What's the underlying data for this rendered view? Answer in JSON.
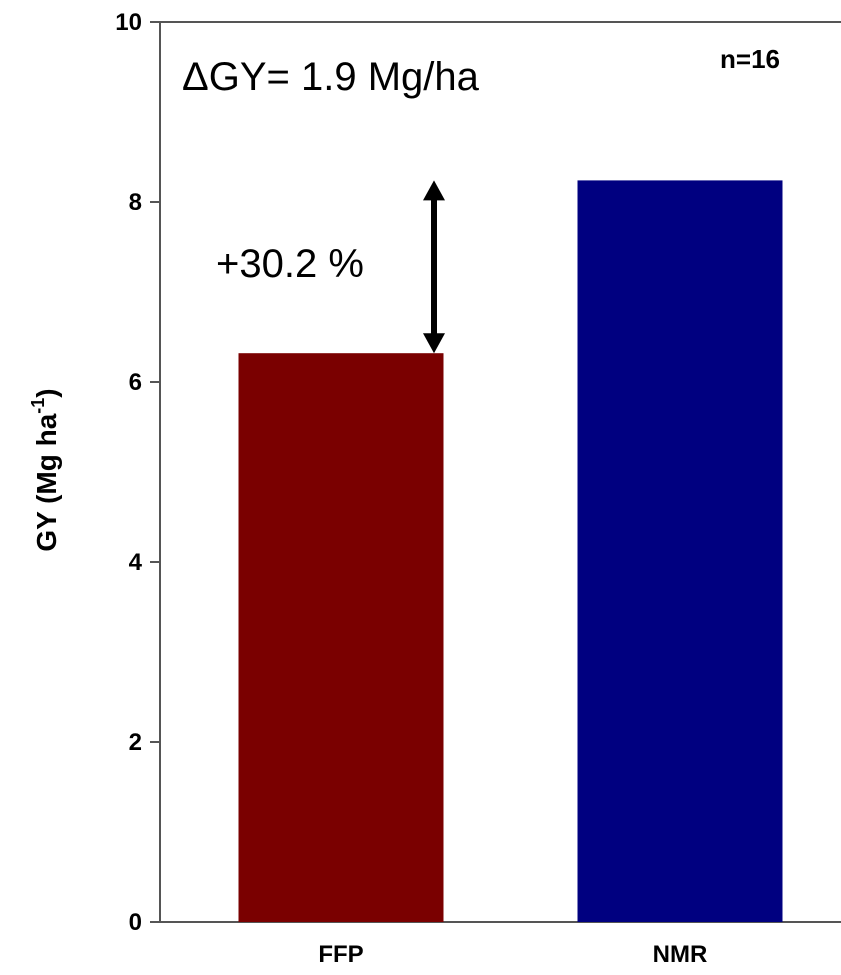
{
  "chart_data": {
    "type": "bar",
    "categories": [
      "FFP",
      "NMR"
    ],
    "values": [
      6.32,
      8.24
    ],
    "bar_colors": [
      "#7a0000",
      "#000080"
    ],
    "ylabel_main": "GY (Mg ha",
    "ylabel_sup": "-1",
    "ylabel_close": ")",
    "ylim": [
      0,
      10
    ],
    "yticks": [
      "0",
      "2",
      "4",
      "6",
      "8",
      "10"
    ],
    "annotations": {
      "delta": "ΔGY= 1.9 Mg/ha",
      "n": "n=16",
      "percent": "+30.2 %"
    }
  }
}
